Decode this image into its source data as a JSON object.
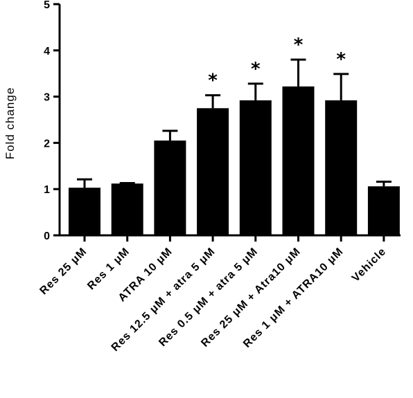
{
  "chart_data": {
    "type": "bar",
    "title": "",
    "xlabel": "",
    "ylabel": "Fold change",
    "ylim": [
      0,
      5
    ],
    "yticks": [
      0,
      1,
      2,
      3,
      4,
      5
    ],
    "categories": [
      "Res 25 μM",
      "Res 1 μM",
      "ATRA 10 μM",
      "Res 12.5 μM + atra 5 μM",
      "Res 0.5 μM + atra 5 μM",
      "Res 25 μM + Atra10 μM",
      "Res 1 μM +  ATRA10 μM",
      "Vehicle"
    ],
    "values": [
      1.03,
      1.12,
      2.05,
      2.75,
      2.92,
      3.22,
      2.92,
      1.06
    ],
    "errors": [
      0.18,
      0.01,
      0.21,
      0.28,
      0.36,
      0.58,
      0.57,
      0.1
    ],
    "significance": [
      "",
      "",
      "",
      "*",
      "*",
      "*",
      "*",
      ""
    ],
    "bar_color": "#000000",
    "grid": false,
    "legend": "none"
  }
}
